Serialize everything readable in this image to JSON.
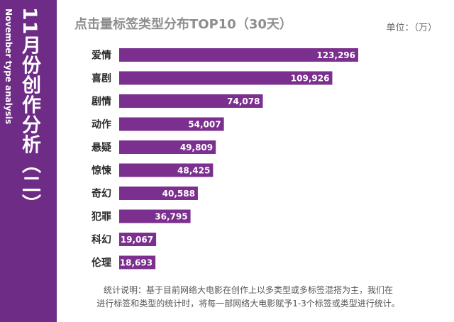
{
  "sidebar": {
    "title": "11月份创作分析（二）",
    "subtitle": "November type analysis"
  },
  "header": {
    "title": "点击量标签类型分布TOP10（30天）",
    "unit": "单位：（万）"
  },
  "colors": {
    "sidebar": "#6e2c86",
    "bar": "#7b2f8e"
  },
  "chart_data": {
    "type": "bar",
    "orientation": "horizontal",
    "title": "点击量标签类型分布TOP10（30天）",
    "unit": "单位：（万）",
    "categories": [
      "爱情",
      "喜剧",
      "剧情",
      "动作",
      "悬疑",
      "惊悚",
      "奇幻",
      "犯罪",
      "科幻",
      "伦理"
    ],
    "values": [
      123296,
      109926,
      74078,
      54007,
      49809,
      48425,
      40588,
      36795,
      19067,
      18693
    ],
    "value_labels": [
      "123,296",
      "109,926",
      "74,078",
      "54,007",
      "49,809",
      "48,425",
      "40,588",
      "36,795",
      "19,067",
      "18,693"
    ],
    "xlim": [
      0,
      123296
    ],
    "grid": false
  },
  "footnote": {
    "line1": "统计说明：基于目前网络大电影在创作上以多类型或多标签混搭为主，我们在",
    "line2": "进行标签和类型的统计时，将每一部网络大电影赋予1-3个标签或类型进行统计。"
  }
}
